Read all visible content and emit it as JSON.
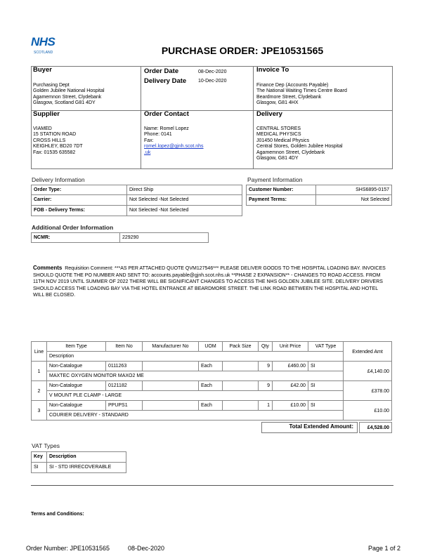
{
  "logo": {
    "text": "NHS",
    "sub": "SCOTLAND",
    "color": "#0b5fb0"
  },
  "title": "PURCHASE ORDER: JPE10531565",
  "buyer": {
    "heading": "Buyer",
    "lines": [
      "Purchasing Dept",
      "Golden Jubilee National Hospital",
      "Agamemnon Street, Clydebank",
      "Glasgow, Scotland G81 4DY"
    ]
  },
  "dates": {
    "order_label": "Order Date",
    "order_value": "08-Dec-2020",
    "delivery_label": "Delivery Date",
    "delivery_value": "10-Dec-2020"
  },
  "invoice": {
    "heading": "Invoice To",
    "lines": [
      "Finance Dep (Accounts Payable)",
      "The National Waiting Times Centre Board",
      "Beardmore Street, Clydebank",
      "Glasgow,    G81 4HX"
    ]
  },
  "supplier": {
    "heading": "Supplier",
    "lines": [
      "VIAMED",
      "15 STATION ROAD",
      "CROSS HILLS",
      "KEIGHLEY,  BD20 7DT",
      "Fax: 01535 635582"
    ]
  },
  "contact": {
    "heading": "Order Contact",
    "lines": [
      "Name: Romel Lopez",
      "Phone: 0141",
      "Fax:"
    ],
    "email1": "romel.lopez@gjnh.scot.nhs",
    "email2": ".uk"
  },
  "delivery": {
    "heading": "Delivery",
    "lines": [
      "CENTRAL STORES",
      "MEDICAL PHYSICS",
      "J01450 Medical Physics",
      "Central Stores, Golden Jubilee Hospital",
      "Agamemnon Street, Clydebank",
      "Glasgow,  G81 4DY"
    ]
  },
  "delivery_info": {
    "heading": "Delivery Information",
    "rows": [
      [
        "Order Type:",
        "Direct Ship"
      ],
      [
        "Carrier:",
        "Not Selected  -Not Selected"
      ],
      [
        "FOB - Delivery Terms:",
        "Not Selected  -Not Selected"
      ]
    ]
  },
  "payment_info": {
    "heading": "Payment Information",
    "rows": [
      [
        "Customer Number:",
        "SHS6895-0157"
      ],
      [
        "Payment Terms:",
        "Not Selected"
      ]
    ]
  },
  "additional": {
    "heading": "Additional Order Information",
    "rows": [
      [
        "NCMR:",
        "229290"
      ]
    ]
  },
  "comments": {
    "label": "Comments",
    "text": "Requisition Comment: ***AS PER ATTACHED QUOTE QVM127546*** PLEASE DELIVER GOODS TO THE HOSPITAL LOADING BAY. INVOICES SHOULD QUOTE THE PO NUMBER AND SENT TO: accounts.payable@gjnh.scot.nhs.uk **PHASE 2 EXPANSION** - CHANGES TO ROAD ACCESS. FROM 11TH NOV 2019 UNTIL SUMMER OF 2022 THERE WILL BE SIGNIFICANT CHANGES TO ACCESS THE NHS GOLDEN JUBILEE SITE. DELIVERY DRIVERS SHOULD ACCESS THE LOADING BAY VIA THE HOTEL ENTRANCE AT BEARDMORE STREET. THE LINK ROAD BETWEEN THE HOSPITAL AND HOTEL WILL BE CLOSED."
  },
  "lines_table": {
    "headers": {
      "line": "Line",
      "item_type": "Item Type",
      "item_no": "Item No",
      "manufacturer": "Manufacturer No",
      "uom": "UOM",
      "pack": "Pack Size",
      "qty": "Qty",
      "unit_price": "Unit Price",
      "vat": "VAT Type",
      "extended": "Extended Amt",
      "description": "Description"
    },
    "rows": [
      {
        "line": "1",
        "item_type": "Non-Catalogue",
        "item_no": "0111263",
        "uom": "Each",
        "qty": "9",
        "unit_price": "£460.00",
        "vat": "SI",
        "extended": "£4,140.00",
        "description": "MAXTEC OXYGEN MONITOR MAXO2 ME"
      },
      {
        "line": "2",
        "item_type": "Non-Catalogue",
        "item_no": "0121182",
        "uom": "Each",
        "qty": "9",
        "unit_price": "£42.00",
        "vat": "SI",
        "extended": "£378.00",
        "description": "V MOUNT PLE CLAMP - LARGE"
      },
      {
        "line": "3",
        "item_type": "Non-Catalogue",
        "item_no": "PPUPS1",
        "uom": "Each",
        "qty": "1",
        "unit_price": "£10.00",
        "vat": "SI",
        "extended": "£10.00",
        "description": "COURIER DELIVERY - STANDARD"
      }
    ],
    "total_label": "Total Extended Amount:",
    "total_value": "£4,528.00"
  },
  "vat_types": {
    "heading": "VAT Types",
    "key_label": "Key",
    "desc_label": "Description",
    "rows": [
      {
        "key": "SI",
        "desc": "SI - STD IRRECOVERABLE"
      }
    ]
  },
  "terms_label": "Terms and Conditions:",
  "footer": {
    "order_number": "Order Number: JPE10531565",
    "date": "08-Dec-2020",
    "page": "Page 1 of 2"
  }
}
